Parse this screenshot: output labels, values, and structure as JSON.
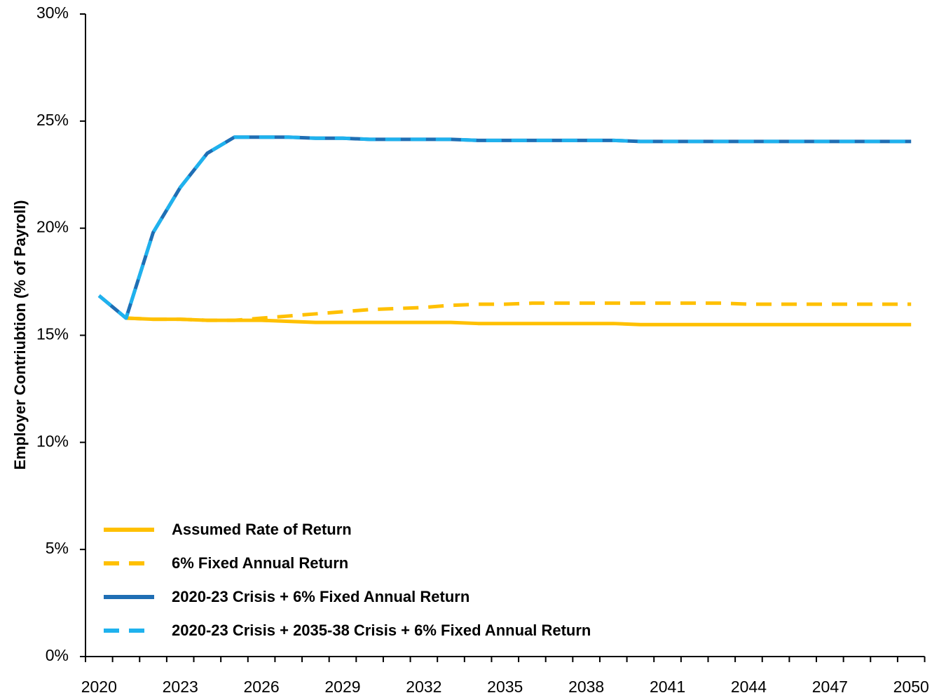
{
  "chart_data": {
    "type": "line",
    "y_label": "Employer Contriubtion (% of Payroll)",
    "categories": [
      "2020",
      null,
      null,
      "2023",
      null,
      null,
      "2026",
      null,
      null,
      "2029",
      null,
      null,
      "2032",
      null,
      null,
      "2035",
      null,
      null,
      "2038",
      null,
      null,
      "2041",
      null,
      null,
      "2044",
      null,
      null,
      "2047",
      null,
      null,
      "2050"
    ],
    "ylim": [
      0,
      30
    ],
    "yticks": [
      {
        "value": 0,
        "label": "0%"
      },
      {
        "value": 5,
        "label": "5%"
      },
      {
        "value": 10,
        "label": "10%"
      },
      {
        "value": 15,
        "label": "15%"
      },
      {
        "value": 20,
        "label": "20%"
      },
      {
        "value": 25,
        "label": "25%"
      },
      {
        "value": 30,
        "label": "30%"
      }
    ],
    "grid": false,
    "legend": "lower left",
    "series": [
      {
        "name": "Assumed Rate of Return",
        "color": "#FFC000",
        "dash": false,
        "values": [
          null,
          15.8,
          15.75,
          15.75,
          15.7,
          15.7,
          15.7,
          15.65,
          15.6,
          15.6,
          15.6,
          15.6,
          15.6,
          15.6,
          15.55,
          15.55,
          15.55,
          15.55,
          15.55,
          15.55,
          15.5,
          15.5,
          15.5,
          15.5,
          15.5,
          15.5,
          15.5,
          15.5,
          15.5,
          15.5,
          15.5
        ]
      },
      {
        "name": "6% Fixed Annual Return",
        "color": "#FFC000",
        "dash": true,
        "values": [
          null,
          15.8,
          15.75,
          15.75,
          15.7,
          15.7,
          15.8,
          15.9,
          16.0,
          16.1,
          16.2,
          16.25,
          16.3,
          16.4,
          16.45,
          16.45,
          16.5,
          16.5,
          16.5,
          16.5,
          16.5,
          16.5,
          16.5,
          16.5,
          16.45,
          16.45,
          16.45,
          16.45,
          16.45,
          16.45,
          16.45
        ]
      },
      {
        "name": "2020-23 Crisis + 6% Fixed Annual Return",
        "color": "#1F6EB4",
        "dash": false,
        "values": [
          16.85,
          15.8,
          19.8,
          21.9,
          23.5,
          24.25,
          24.25,
          24.25,
          24.2,
          24.2,
          24.15,
          24.15,
          24.15,
          24.15,
          24.1,
          24.1,
          24.1,
          24.1,
          24.1,
          24.1,
          24.05,
          24.05,
          24.05,
          24.05,
          24.05,
          24.05,
          24.05,
          24.05,
          24.05,
          24.05,
          24.05
        ]
      },
      {
        "name": "2020-23 Crisis + 2035-38 Crisis + 6% Fixed Annual Return",
        "color": "#1FB2EE",
        "dash": true,
        "values": [
          16.85,
          15.8,
          19.8,
          21.9,
          23.5,
          24.25,
          24.25,
          24.25,
          24.2,
          24.2,
          24.15,
          24.15,
          24.15,
          24.15,
          24.1,
          24.1,
          24.1,
          24.1,
          24.1,
          24.1,
          24.05,
          24.05,
          24.05,
          24.05,
          24.05,
          24.05,
          24.05,
          24.05,
          24.05,
          24.05,
          24.05
        ]
      }
    ]
  }
}
